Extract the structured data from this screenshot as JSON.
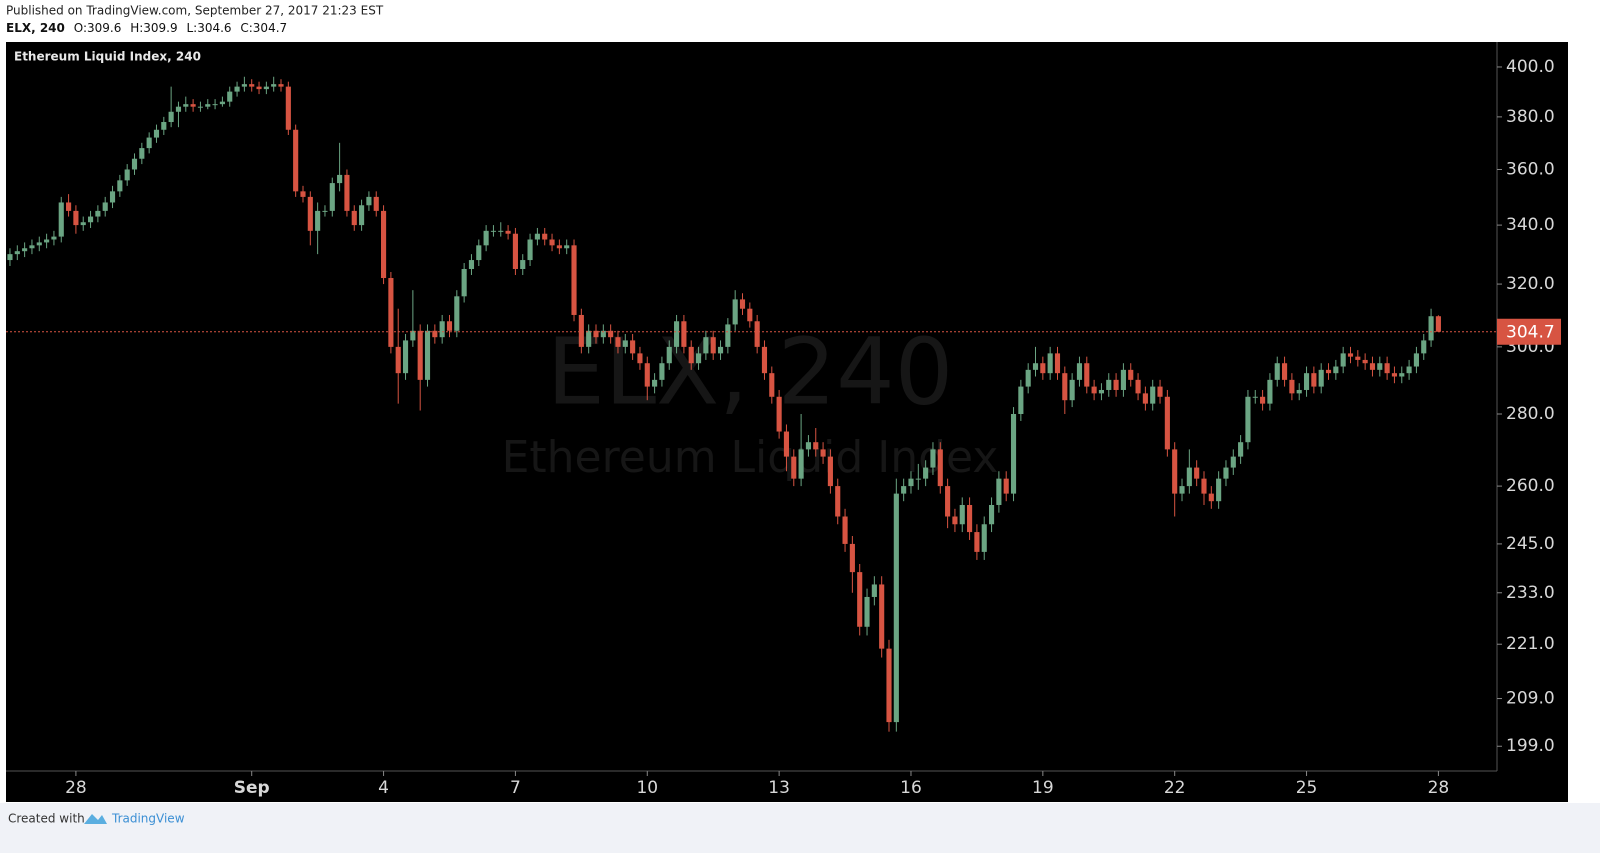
{
  "header": {
    "published": "Published on TradingView.com, September 27, 2017 21:23 EST",
    "symbol": "ELX, 240",
    "ohlc_labels": [
      "O:",
      "H:",
      "L:",
      "C:"
    ]
  },
  "chart_data": {
    "type": "candlestick",
    "title": "Ethereum Liquid Index, 240",
    "watermark": "Ethereum Liquid Index",
    "up_color": "#6ba583",
    "down_color": "#d75442",
    "log_scale": true,
    "last_price_line": true,
    "xlim": [
      -0.27,
      203
    ],
    "ylim": [
      194.2,
      410.4
    ],
    "xticks": [
      {
        "value": 9,
        "label": "28"
      },
      {
        "value": 33,
        "label": "Sep"
      },
      {
        "value": 51,
        "label": "4"
      },
      {
        "value": 69,
        "label": "7"
      },
      {
        "value": 87,
        "label": "10"
      },
      {
        "value": 105,
        "label": "13"
      },
      {
        "value": 123,
        "label": "16"
      },
      {
        "value": 141,
        "label": "19"
      },
      {
        "value": 159,
        "label": "22"
      },
      {
        "value": 177,
        "label": "25"
      },
      {
        "value": 195,
        "label": "28"
      }
    ],
    "yticks": [
      {
        "value": 400,
        "label": "400.0"
      },
      {
        "value": 380,
        "label": "380.0"
      },
      {
        "value": 360,
        "label": "360.0"
      },
      {
        "value": 340,
        "label": "340.0"
      },
      {
        "value": 320,
        "label": "320.0"
      },
      {
        "value": 300,
        "label": "300.0"
      },
      {
        "value": 280,
        "label": "280.0"
      },
      {
        "value": 260,
        "label": "260.0"
      },
      {
        "value": 245,
        "label": "245.0"
      },
      {
        "value": 233,
        "label": "233.0"
      },
      {
        "value": 221,
        "label": "221.0"
      },
      {
        "value": 209,
        "label": "209.0"
      },
      {
        "value": 199,
        "label": "199.0"
      }
    ],
    "candles": [
      [
        328,
        332,
        326,
        330
      ],
      [
        330,
        333,
        328,
        331
      ],
      [
        331,
        334,
        329,
        332
      ],
      [
        332,
        335,
        330,
        333
      ],
      [
        333,
        336,
        331,
        334
      ],
      [
        334,
        337,
        332,
        335
      ],
      [
        335,
        338,
        333,
        336
      ],
      [
        336,
        350,
        334,
        348
      ],
      [
        348,
        351,
        343,
        345
      ],
      [
        345,
        347,
        337,
        340
      ],
      [
        340,
        343,
        338,
        341
      ],
      [
        341,
        345,
        339,
        343
      ],
      [
        343,
        347,
        341,
        345
      ],
      [
        345,
        350,
        343,
        348
      ],
      [
        348,
        354,
        346,
        352
      ],
      [
        352,
        358,
        350,
        356
      ],
      [
        356,
        362,
        354,
        360
      ],
      [
        360,
        366,
        358,
        364
      ],
      [
        364,
        370,
        362,
        368
      ],
      [
        368,
        374,
        366,
        372
      ],
      [
        372,
        377,
        370,
        375
      ],
      [
        375,
        380,
        373,
        378
      ],
      [
        378,
        392,
        376,
        382
      ],
      [
        382,
        386,
        376,
        384
      ],
      [
        384,
        388,
        382,
        385
      ],
      [
        385,
        387,
        382,
        384
      ],
      [
        384,
        386,
        382,
        384
      ],
      [
        384,
        387,
        383,
        385
      ],
      [
        385,
        387,
        383,
        385
      ],
      [
        385,
        388,
        384,
        386
      ],
      [
        386,
        392,
        384,
        390
      ],
      [
        390,
        394,
        388,
        392
      ],
      [
        392,
        396,
        390,
        393
      ],
      [
        393,
        395,
        390,
        392
      ],
      [
        392,
        394,
        389,
        391
      ],
      [
        391,
        394,
        389,
        392
      ],
      [
        392,
        396,
        390,
        393
      ],
      [
        393,
        395,
        390,
        392
      ],
      [
        392,
        394,
        373,
        375
      ],
      [
        375,
        377,
        350,
        352
      ],
      [
        352,
        354,
        348,
        350
      ],
      [
        350,
        352,
        333,
        338
      ],
      [
        338,
        348,
        330,
        345
      ],
      [
        345,
        347,
        343,
        345
      ],
      [
        345,
        357,
        343,
        355
      ],
      [
        355,
        370,
        352,
        358
      ],
      [
        358,
        360,
        343,
        345
      ],
      [
        345,
        347,
        338,
        340
      ],
      [
        340,
        349,
        338,
        347
      ],
      [
        347,
        352,
        345,
        350
      ],
      [
        350,
        352,
        343,
        345
      ],
      [
        345,
        347,
        320,
        322
      ],
      [
        322,
        324,
        298,
        300
      ],
      [
        300,
        312,
        283,
        292
      ],
      [
        292,
        304,
        290,
        302
      ],
      [
        302,
        318,
        300,
        305
      ],
      [
        305,
        307,
        281,
        290
      ],
      [
        290,
        307,
        288,
        305
      ],
      [
        305,
        307,
        301,
        303
      ],
      [
        303,
        310,
        301,
        308
      ],
      [
        308,
        310,
        303,
        305
      ],
      [
        305,
        318,
        303,
        316
      ],
      [
        316,
        327,
        314,
        325
      ],
      [
        325,
        330,
        323,
        328
      ],
      [
        328,
        335,
        326,
        333
      ],
      [
        333,
        340,
        331,
        338
      ],
      [
        338,
        340,
        336,
        338
      ],
      [
        338,
        341,
        336,
        338
      ],
      [
        338,
        340,
        335,
        337
      ],
      [
        337,
        339,
        323,
        325
      ],
      [
        325,
        330,
        323,
        328
      ],
      [
        328,
        337,
        326,
        335
      ],
      [
        335,
        339,
        333,
        337
      ],
      [
        337,
        339,
        333,
        335
      ],
      [
        335,
        337,
        331,
        333
      ],
      [
        333,
        335,
        330,
        332
      ],
      [
        332,
        335,
        330,
        333
      ],
      [
        333,
        335,
        308,
        310
      ],
      [
        310,
        312,
        298,
        300
      ],
      [
        300,
        307,
        298,
        305
      ],
      [
        305,
        307,
        301,
        303
      ],
      [
        303,
        307,
        301,
        305
      ],
      [
        305,
        307,
        301,
        303
      ],
      [
        303,
        305,
        298,
        300
      ],
      [
        300,
        304,
        298,
        302
      ],
      [
        302,
        304,
        296,
        298
      ],
      [
        298,
        300,
        293,
        295
      ],
      [
        295,
        297,
        284,
        288
      ],
      [
        288,
        292,
        286,
        290
      ],
      [
        290,
        297,
        288,
        295
      ],
      [
        295,
        302,
        293,
        300
      ],
      [
        300,
        310,
        298,
        308
      ],
      [
        308,
        310,
        298,
        300
      ],
      [
        300,
        302,
        293,
        295
      ],
      [
        295,
        300,
        293,
        298
      ],
      [
        298,
        305,
        296,
        303
      ],
      [
        303,
        305,
        296,
        298
      ],
      [
        298,
        302,
        296,
        300
      ],
      [
        300,
        309,
        298,
        307
      ],
      [
        307,
        318,
        305,
        315
      ],
      [
        315,
        317,
        310,
        312
      ],
      [
        312,
        314,
        306,
        308
      ],
      [
        308,
        310,
        298,
        300
      ],
      [
        300,
        302,
        290,
        292
      ],
      [
        292,
        294,
        283,
        285
      ],
      [
        285,
        287,
        273,
        275
      ],
      [
        275,
        277,
        264,
        268
      ],
      [
        268,
        270,
        260,
        262
      ],
      [
        262,
        280,
        260,
        270
      ],
      [
        270,
        274,
        268,
        272
      ],
      [
        272,
        276,
        268,
        270
      ],
      [
        270,
        272,
        266,
        268
      ],
      [
        268,
        270,
        258,
        260
      ],
      [
        260,
        262,
        250,
        252
      ],
      [
        252,
        254,
        243,
        245
      ],
      [
        245,
        247,
        233,
        238
      ],
      [
        238,
        240,
        223,
        225
      ],
      [
        225,
        234,
        223,
        232
      ],
      [
        232,
        237,
        230,
        235
      ],
      [
        235,
        237,
        218,
        220
      ],
      [
        220,
        222,
        202,
        204
      ],
      [
        204,
        262,
        202,
        258
      ],
      [
        258,
        262,
        256,
        260
      ],
      [
        260,
        264,
        258,
        262
      ],
      [
        262,
        266,
        259,
        262
      ],
      [
        262,
        267,
        260,
        265
      ],
      [
        265,
        272,
        263,
        270
      ],
      [
        270,
        272,
        258,
        260
      ],
      [
        260,
        262,
        249,
        252
      ],
      [
        252,
        254,
        248,
        250
      ],
      [
        250,
        257,
        248,
        255
      ],
      [
        255,
        257,
        246,
        248
      ],
      [
        248,
        250,
        241,
        243
      ],
      [
        243,
        252,
        241,
        250
      ],
      [
        250,
        257,
        248,
        255
      ],
      [
        255,
        264,
        253,
        262
      ],
      [
        262,
        264,
        256,
        258
      ],
      [
        258,
        282,
        256,
        280
      ],
      [
        280,
        290,
        278,
        288
      ],
      [
        288,
        295,
        286,
        293
      ],
      [
        293,
        300,
        291,
        295
      ],
      [
        295,
        297,
        290,
        292
      ],
      [
        292,
        300,
        290,
        298
      ],
      [
        298,
        300,
        290,
        292
      ],
      [
        292,
        294,
        280,
        284
      ],
      [
        284,
        292,
        282,
        290
      ],
      [
        290,
        297,
        288,
        295
      ],
      [
        295,
        297,
        286,
        288
      ],
      [
        288,
        290,
        284,
        286
      ],
      [
        286,
        289,
        284,
        287
      ],
      [
        287,
        292,
        285,
        290
      ],
      [
        290,
        292,
        285,
        287
      ],
      [
        287,
        295,
        285,
        293
      ],
      [
        293,
        295,
        288,
        290
      ],
      [
        290,
        292,
        284,
        286
      ],
      [
        286,
        288,
        281,
        283
      ],
      [
        283,
        290,
        281,
        288
      ],
      [
        288,
        290,
        283,
        285
      ],
      [
        285,
        287,
        268,
        270
      ],
      [
        270,
        272,
        252,
        258
      ],
      [
        258,
        262,
        256,
        260
      ],
      [
        260,
        270,
        258,
        265
      ],
      [
        265,
        267,
        260,
        262
      ],
      [
        262,
        264,
        255,
        258
      ],
      [
        258,
        260,
        254,
        256
      ],
      [
        256,
        264,
        254,
        262
      ],
      [
        262,
        267,
        260,
        265
      ],
      [
        265,
        270,
        263,
        268
      ],
      [
        268,
        274,
        266,
        272
      ],
      [
        272,
        287,
        270,
        285
      ],
      [
        285,
        287,
        283,
        285
      ],
      [
        285,
        287,
        281,
        283
      ],
      [
        283,
        292,
        281,
        290
      ],
      [
        290,
        297,
        288,
        295
      ],
      [
        295,
        297,
        288,
        290
      ],
      [
        290,
        292,
        284,
        286
      ],
      [
        286,
        289,
        284,
        287
      ],
      [
        287,
        294,
        285,
        292
      ],
      [
        292,
        294,
        286,
        288
      ],
      [
        288,
        295,
        286,
        293
      ],
      [
        293,
        295,
        290,
        292
      ],
      [
        292,
        296,
        290,
        294
      ],
      [
        294,
        300,
        292,
        298
      ],
      [
        298,
        300,
        295,
        297
      ],
      [
        297,
        299,
        294,
        296
      ],
      [
        296,
        298,
        293,
        295
      ],
      [
        295,
        297,
        291,
        293
      ],
      [
        293,
        297,
        291,
        295
      ],
      [
        295,
        297,
        290,
        292
      ],
      [
        292,
        294,
        289,
        291
      ],
      [
        291,
        294,
        289,
        292
      ],
      [
        292,
        296,
        290,
        294
      ],
      [
        294,
        300,
        292,
        298
      ],
      [
        298,
        304,
        296,
        302
      ],
      [
        302,
        312,
        300,
        309.6
      ],
      [
        309.6,
        309.9,
        304.6,
        304.7
      ]
    ]
  },
  "footer": {
    "created_with": "Created with",
    "brand": "TradingView"
  }
}
